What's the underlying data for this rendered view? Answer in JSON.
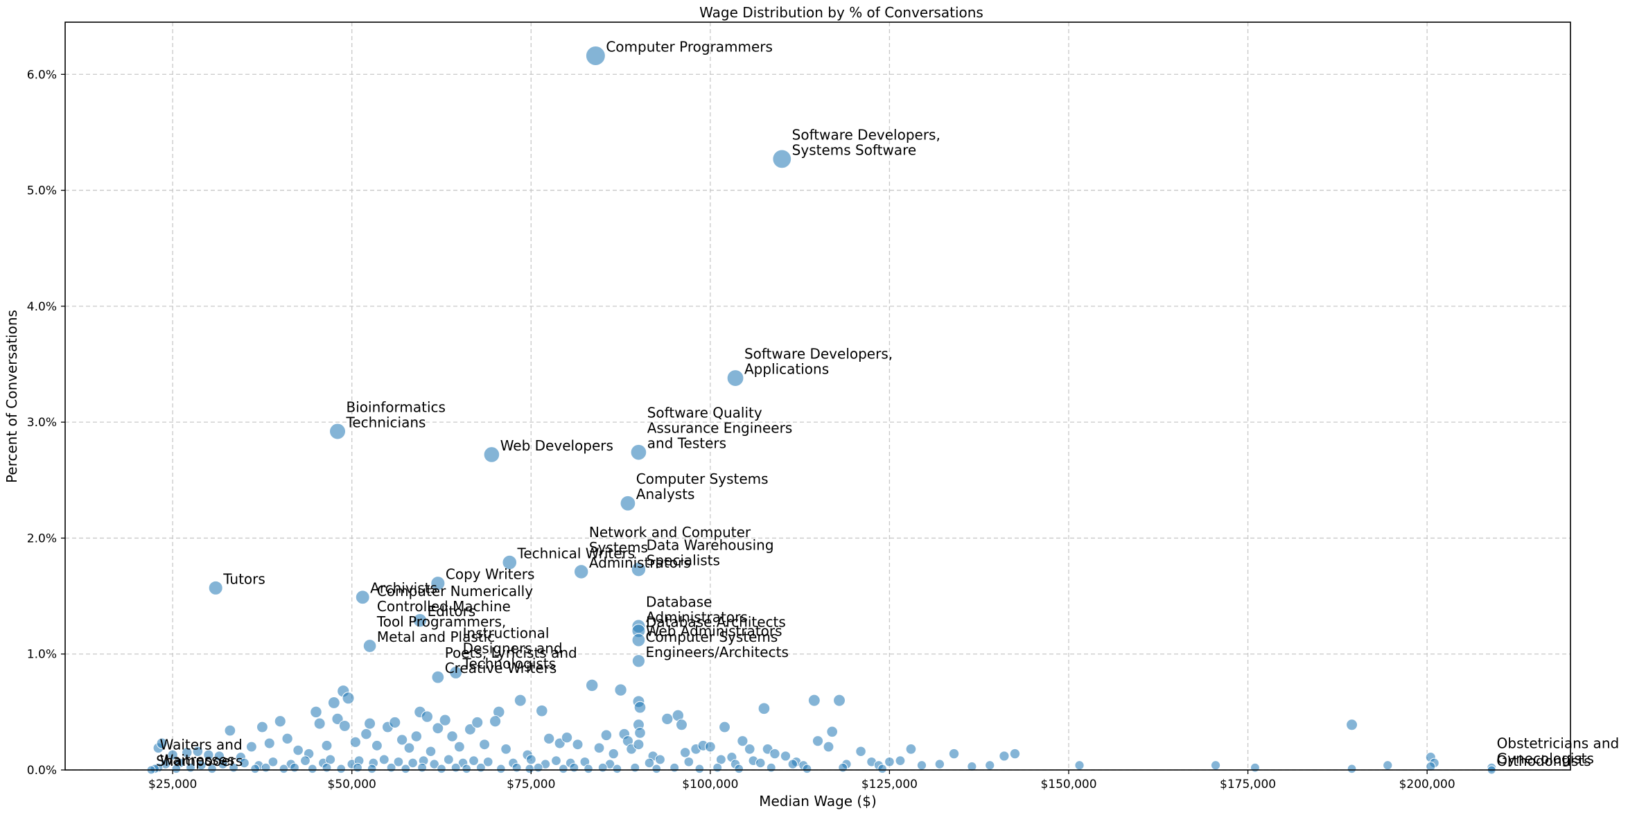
{
  "chart_data": {
    "type": "scatter",
    "title": "Wage Distribution by % of Conversations",
    "xlabel": "Median Wage ($)",
    "ylabel": "Percent of Conversations",
    "xlim": [
      10000,
      220000
    ],
    "ylim": [
      0,
      6.45
    ],
    "grid": true,
    "x_ticks": [
      {
        "value": 25000,
        "label": "$25,000"
      },
      {
        "value": 50000,
        "label": "$50,000"
      },
      {
        "value": 75000,
        "label": "$75,000"
      },
      {
        "value": 100000,
        "label": "$100,000"
      },
      {
        "value": 125000,
        "label": "$125,000"
      },
      {
        "value": 150000,
        "label": "$150,000"
      },
      {
        "value": 175000,
        "label": "$175,000"
      },
      {
        "value": 200000,
        "label": "$200,000"
      }
    ],
    "y_ticks": [
      {
        "value": 0,
        "label": "0.0%"
      },
      {
        "value": 1,
        "label": "1.0%"
      },
      {
        "value": 2,
        "label": "2.0%"
      },
      {
        "value": 3,
        "label": "3.0%"
      },
      {
        "value": 4,
        "label": "4.0%"
      },
      {
        "value": 5,
        "label": "5.0%"
      },
      {
        "value": 6,
        "label": "6.0%"
      }
    ],
    "labeled_points": [
      {
        "label": "Computer Programmers",
        "wage": 84000,
        "pct": 6.16
      },
      {
        "label": "Software Developers,\nSystems Software",
        "wage": 110000,
        "pct": 5.27
      },
      {
        "label": "Software Developers,\nApplications",
        "wage": 103500,
        "pct": 3.38
      },
      {
        "label": "Bioinformatics\nTechnicians",
        "wage": 48000,
        "pct": 2.92
      },
      {
        "label": "Web Developers",
        "wage": 69500,
        "pct": 2.72
      },
      {
        "label": "Software Quality\nAssurance Engineers\nand Testers",
        "wage": 90000,
        "pct": 2.74
      },
      {
        "label": "Computer Systems\nAnalysts",
        "wage": 88500,
        "pct": 2.3
      },
      {
        "label": "Network and Computer\nSystems\nAdministrators",
        "wage": 82000,
        "pct": 1.71
      },
      {
        "label": "Technical Writers",
        "wage": 72000,
        "pct": 1.79
      },
      {
        "label": "Data Warehousing\nSpecialists",
        "wage": 90000,
        "pct": 1.73
      },
      {
        "label": "Tutors",
        "wage": 31000,
        "pct": 1.57
      },
      {
        "label": "Copy Writers",
        "wage": 62000,
        "pct": 1.61
      },
      {
        "label": "Archivists",
        "wage": 51500,
        "pct": 1.49
      },
      {
        "label": "Computer Numerically\nControlled Machine\nTool Programmers,\nMetal and Plastic",
        "wage": 52500,
        "pct": 1.07
      },
      {
        "label": "Editors",
        "wage": 59500,
        "pct": 1.29
      },
      {
        "label": "Database\nAdministrators",
        "wage": 90000,
        "pct": 1.24
      },
      {
        "label": "Database Architects",
        "wage": 90000,
        "pct": 1.2
      },
      {
        "label": "Web Administrators",
        "wage": 90000,
        "pct": 1.12
      },
      {
        "label": "Computer Systems\nEngineers/Architects",
        "wage": 90000,
        "pct": 0.94
      },
      {
        "label": "Instructional\nDesigners and\nTechnologists",
        "wage": 64500,
        "pct": 0.84
      },
      {
        "label": "Poets, Lyricists and\nCreative Writers",
        "wage": 62000,
        "pct": 0.8
      },
      {
        "label": "Waiters and\nWaitresses",
        "wage": 22500,
        "pct": 0.01
      },
      {
        "label": "Shampooers",
        "wage": 22000,
        "pct": 0.0
      },
      {
        "label": "Obstetricians and\nGynecologists",
        "wage": 209000,
        "pct": 0.02
      },
      {
        "label": "Orthodontists",
        "wage": 209000,
        "pct": 0.0
      }
    ],
    "other_points": [
      [
        23000,
        0.19
      ],
      [
        23500,
        0.23
      ],
      [
        25000,
        0.13
      ],
      [
        27000,
        0.15
      ],
      [
        28500,
        0.16
      ],
      [
        30000,
        0.13
      ],
      [
        31500,
        0.12
      ],
      [
        33000,
        0.34
      ],
      [
        34500,
        0.11
      ],
      [
        36000,
        0.2
      ],
      [
        37500,
        0.37
      ],
      [
        38500,
        0.23
      ],
      [
        40000,
        0.42
      ],
      [
        41000,
        0.27
      ],
      [
        42500,
        0.17
      ],
      [
        44000,
        0.14
      ],
      [
        45000,
        0.5
      ],
      [
        45500,
        0.4
      ],
      [
        46500,
        0.21
      ],
      [
        47500,
        0.58
      ],
      [
        48000,
        0.44
      ],
      [
        48800,
        0.68
      ],
      [
        49500,
        0.62
      ],
      [
        49000,
        0.38
      ],
      [
        50500,
        0.24
      ],
      [
        52000,
        0.31
      ],
      [
        52500,
        0.4
      ],
      [
        53500,
        0.21
      ],
      [
        55000,
        0.37
      ],
      [
        56000,
        0.41
      ],
      [
        57000,
        0.26
      ],
      [
        58000,
        0.19
      ],
      [
        59000,
        0.29
      ],
      [
        59500,
        0.5
      ],
      [
        60500,
        0.46
      ],
      [
        61000,
        0.16
      ],
      [
        62000,
        0.36
      ],
      [
        63000,
        0.43
      ],
      [
        64000,
        0.29
      ],
      [
        65000,
        0.2
      ],
      [
        66500,
        0.35
      ],
      [
        67500,
        0.41
      ],
      [
        68500,
        0.22
      ],
      [
        70500,
        0.5
      ],
      [
        70000,
        0.42
      ],
      [
        71500,
        0.18
      ],
      [
        73500,
        0.6
      ],
      [
        74500,
        0.13
      ],
      [
        76500,
        0.51
      ],
      [
        77500,
        0.27
      ],
      [
        79000,
        0.23
      ],
      [
        80000,
        0.28
      ],
      [
        81500,
        0.22
      ],
      [
        83500,
        0.73
      ],
      [
        84500,
        0.19
      ],
      [
        85500,
        0.3
      ],
      [
        86500,
        0.14
      ],
      [
        87500,
        0.69
      ],
      [
        88000,
        0.31
      ],
      [
        88500,
        0.25
      ],
      [
        89000,
        0.18
      ],
      [
        90000,
        0.59
      ],
      [
        90200,
        0.54
      ],
      [
        90000,
        0.39
      ],
      [
        90200,
        0.32
      ],
      [
        90000,
        0.22
      ],
      [
        92000,
        0.12
      ],
      [
        93000,
        0.09
      ],
      [
        94000,
        0.44
      ],
      [
        95500,
        0.47
      ],
      [
        96000,
        0.39
      ],
      [
        96500,
        0.15
      ],
      [
        98000,
        0.18
      ],
      [
        99000,
        0.21
      ],
      [
        100000,
        0.2
      ],
      [
        101500,
        0.09
      ],
      [
        102000,
        0.37
      ],
      [
        103000,
        0.11
      ],
      [
        104500,
        0.25
      ],
      [
        105500,
        0.18
      ],
      [
        106000,
        0.08
      ],
      [
        107500,
        0.53
      ],
      [
        108000,
        0.18
      ],
      [
        109000,
        0.14
      ],
      [
        110500,
        0.12
      ],
      [
        112000,
        0.07
      ],
      [
        113000,
        0.04
      ],
      [
        114500,
        0.6
      ],
      [
        115000,
        0.25
      ],
      [
        116500,
        0.2
      ],
      [
        117000,
        0.33
      ],
      [
        118000,
        0.6
      ],
      [
        119000,
        0.05
      ],
      [
        121000,
        0.16
      ],
      [
        122500,
        0.07
      ],
      [
        123500,
        0.04
      ],
      [
        125000,
        0.07
      ],
      [
        126500,
        0.08
      ],
      [
        128000,
        0.18
      ],
      [
        129500,
        0.04
      ],
      [
        132000,
        0.05
      ],
      [
        134000,
        0.14
      ],
      [
        136500,
        0.03
      ],
      [
        139000,
        0.04
      ],
      [
        141000,
        0.12
      ],
      [
        142500,
        0.14
      ],
      [
        151500,
        0.04
      ],
      [
        170500,
        0.04
      ],
      [
        176000,
        0.02
      ],
      [
        189500,
        0.39
      ],
      [
        189500,
        0.01
      ],
      [
        194500,
        0.04
      ],
      [
        200500,
        0.11
      ],
      [
        201000,
        0.06
      ],
      [
        200500,
        0.03
      ],
      [
        24000,
        0.05
      ],
      [
        26000,
        0.06
      ],
      [
        29000,
        0.04
      ],
      [
        32000,
        0.05
      ],
      [
        35000,
        0.06
      ],
      [
        37000,
        0.04
      ],
      [
        39000,
        0.07
      ],
      [
        41500,
        0.05
      ],
      [
        43500,
        0.08
      ],
      [
        46000,
        0.06
      ],
      [
        47000,
        0.09
      ],
      [
        50000,
        0.05
      ],
      [
        51000,
        0.08
      ],
      [
        53000,
        0.06
      ],
      [
        54500,
        0.09
      ],
      [
        56500,
        0.07
      ],
      [
        58500,
        0.06
      ],
      [
        60000,
        0.08
      ],
      [
        61500,
        0.05
      ],
      [
        63500,
        0.09
      ],
      [
        65500,
        0.06
      ],
      [
        67000,
        0.08
      ],
      [
        69000,
        0.07
      ],
      [
        72500,
        0.06
      ],
      [
        75000,
        0.09
      ],
      [
        77000,
        0.05
      ],
      [
        78500,
        0.08
      ],
      [
        80500,
        0.06
      ],
      [
        82500,
        0.07
      ],
      [
        86000,
        0.05
      ],
      [
        91500,
        0.06
      ],
      [
        97000,
        0.07
      ],
      [
        103500,
        0.05
      ],
      [
        107000,
        0.06
      ],
      [
        111500,
        0.05
      ],
      [
        23000,
        0.02
      ],
      [
        25500,
        0.01
      ],
      [
        27500,
        0.02
      ],
      [
        30500,
        0.01
      ],
      [
        33500,
        0.02
      ],
      [
        36500,
        0.01
      ],
      [
        38000,
        0.02
      ],
      [
        40500,
        0.01
      ],
      [
        42000,
        0.02
      ],
      [
        44500,
        0.01
      ],
      [
        46500,
        0.02
      ],
      [
        48500,
        0.01
      ],
      [
        50800,
        0.02
      ],
      [
        52800,
        0.01
      ],
      [
        55500,
        0.02
      ],
      [
        57500,
        0.01
      ],
      [
        59800,
        0.02
      ],
      [
        62500,
        0.01
      ],
      [
        64500,
        0.02
      ],
      [
        66000,
        0.01
      ],
      [
        68000,
        0.02
      ],
      [
        70800,
        0.01
      ],
      [
        73000,
        0.02
      ],
      [
        74800,
        0.01
      ],
      [
        76000,
        0.02
      ],
      [
        79500,
        0.01
      ],
      [
        81000,
        0.02
      ],
      [
        83000,
        0.01
      ],
      [
        85000,
        0.02
      ],
      [
        87000,
        0.01
      ],
      [
        89500,
        0.02
      ],
      [
        92500,
        0.01
      ],
      [
        95000,
        0.02
      ],
      [
        98500,
        0.01
      ],
      [
        101000,
        0.02
      ],
      [
        104000,
        0.01
      ],
      [
        108500,
        0.02
      ],
      [
        113500,
        0.01
      ],
      [
        118500,
        0.02
      ],
      [
        124000,
        0.01
      ]
    ]
  }
}
